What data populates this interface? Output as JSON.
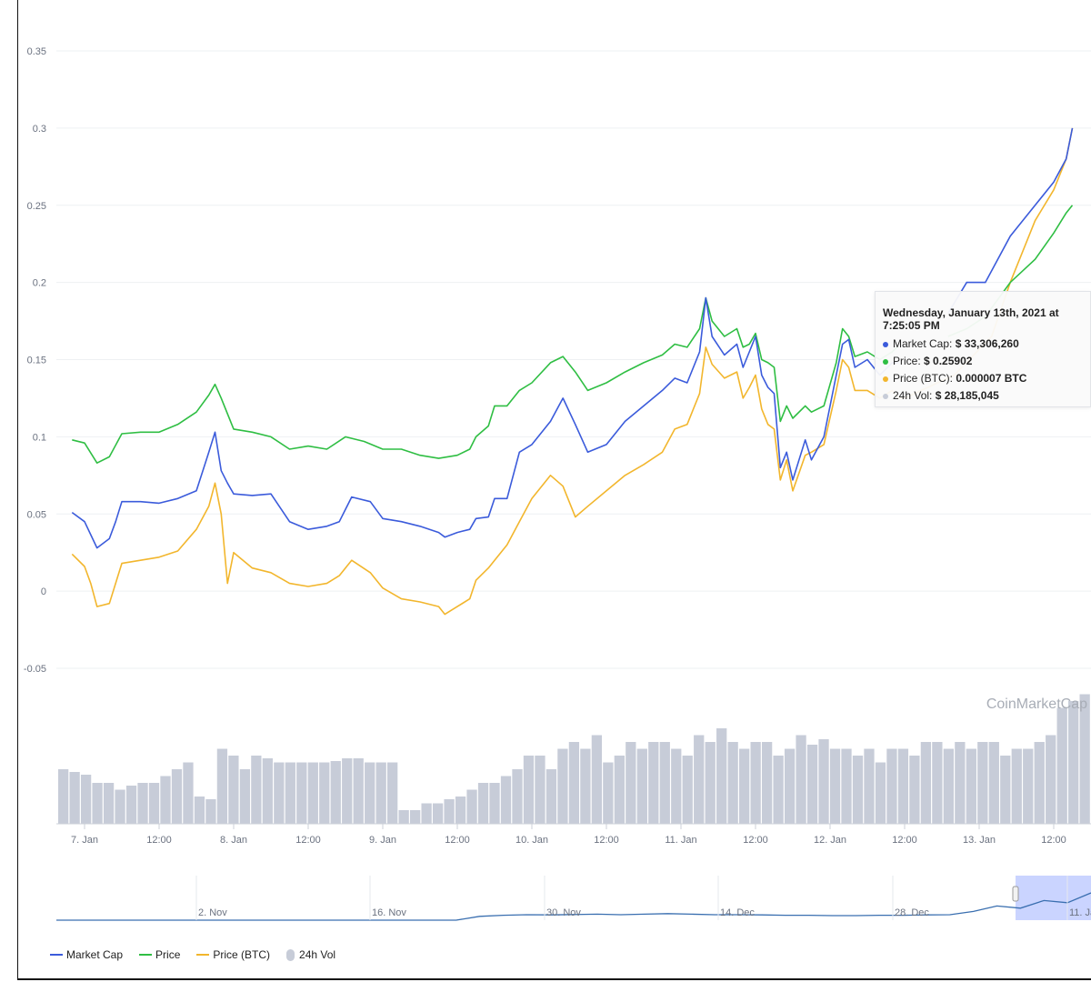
{
  "chart_data": {
    "type": "line",
    "yaxis": {
      "range": [
        -0.05,
        0.35
      ],
      "ticks": [
        "0.35",
        "0.3",
        "0.25",
        "0.2",
        "0.15",
        "0.1",
        "0.05",
        "0",
        "-0.05"
      ]
    },
    "x_tick_labels": [
      "7. Jan",
      "12:00",
      "8. Jan",
      "12:00",
      "9. Jan",
      "12:00",
      "10. Jan",
      "12:00",
      "11. Jan",
      "12:00",
      "12. Jan",
      "12:00",
      "13. Jan",
      "12:00"
    ],
    "x_hours": [
      0,
      12,
      24,
      36,
      48,
      60,
      72,
      84,
      96,
      108,
      120,
      132,
      144,
      156
    ],
    "series": [
      {
        "name": "Market Cap",
        "color": "#3b5bdb",
        "points": [
          [
            -2,
            0.051
          ],
          [
            0,
            0.045
          ],
          [
            2,
            0.028
          ],
          [
            3,
            0.031
          ],
          [
            4,
            0.034
          ],
          [
            5,
            0.045
          ],
          [
            6,
            0.058
          ],
          [
            9,
            0.058
          ],
          [
            12,
            0.057
          ],
          [
            15,
            0.06
          ],
          [
            18,
            0.065
          ],
          [
            20,
            0.09
          ],
          [
            21,
            0.103
          ],
          [
            22,
            0.078
          ],
          [
            23,
            0.07
          ],
          [
            24,
            0.063
          ],
          [
            27,
            0.062
          ],
          [
            30,
            0.063
          ],
          [
            33,
            0.045
          ],
          [
            36,
            0.04
          ],
          [
            39,
            0.042
          ],
          [
            41,
            0.045
          ],
          [
            43,
            0.061
          ],
          [
            46,
            0.058
          ],
          [
            48,
            0.047
          ],
          [
            51,
            0.045
          ],
          [
            54,
            0.042
          ],
          [
            57,
            0.038
          ],
          [
            58,
            0.035
          ],
          [
            60,
            0.038
          ],
          [
            62,
            0.04
          ],
          [
            63,
            0.047
          ],
          [
            65,
            0.048
          ],
          [
            66,
            0.06
          ],
          [
            68,
            0.06
          ],
          [
            70,
            0.09
          ],
          [
            72,
            0.095
          ],
          [
            75,
            0.11
          ],
          [
            77,
            0.125
          ],
          [
            79,
            0.108
          ],
          [
            81,
            0.09
          ],
          [
            84,
            0.095
          ],
          [
            87,
            0.11
          ],
          [
            90,
            0.12
          ],
          [
            93,
            0.13
          ],
          [
            95,
            0.138
          ],
          [
            97,
            0.135
          ],
          [
            99,
            0.155
          ],
          [
            100,
            0.19
          ],
          [
            101,
            0.165
          ],
          [
            103,
            0.153
          ],
          [
            105,
            0.16
          ],
          [
            106,
            0.145
          ],
          [
            107,
            0.155
          ],
          [
            108,
            0.165
          ],
          [
            109,
            0.14
          ],
          [
            110,
            0.132
          ],
          [
            111,
            0.128
          ],
          [
            112,
            0.08
          ],
          [
            113,
            0.09
          ],
          [
            114,
            0.072
          ],
          [
            116,
            0.098
          ],
          [
            117,
            0.085
          ],
          [
            119,
            0.1
          ],
          [
            121,
            0.14
          ],
          [
            122,
            0.16
          ],
          [
            123,
            0.163
          ],
          [
            124,
            0.145
          ],
          [
            126,
            0.15
          ],
          [
            128,
            0.14
          ],
          [
            130,
            0.148
          ],
          [
            131,
            0.148
          ]
        ]
      },
      {
        "name": "Price",
        "color": "#2fbe43",
        "points": [
          [
            -2,
            0.098
          ],
          [
            0,
            0.096
          ],
          [
            2,
            0.083
          ],
          [
            4,
            0.087
          ],
          [
            6,
            0.102
          ],
          [
            9,
            0.103
          ],
          [
            12,
            0.103
          ],
          [
            15,
            0.108
          ],
          [
            18,
            0.116
          ],
          [
            20,
            0.127
          ],
          [
            21,
            0.134
          ],
          [
            22,
            0.125
          ],
          [
            24,
            0.105
          ],
          [
            27,
            0.103
          ],
          [
            30,
            0.1
          ],
          [
            33,
            0.092
          ],
          [
            36,
            0.094
          ],
          [
            39,
            0.092
          ],
          [
            42,
            0.1
          ],
          [
            45,
            0.097
          ],
          [
            48,
            0.092
          ],
          [
            51,
            0.092
          ],
          [
            54,
            0.088
          ],
          [
            57,
            0.086
          ],
          [
            60,
            0.088
          ],
          [
            62,
            0.092
          ],
          [
            63,
            0.1
          ],
          [
            65,
            0.107
          ],
          [
            66,
            0.12
          ],
          [
            68,
            0.12
          ],
          [
            70,
            0.13
          ],
          [
            72,
            0.135
          ],
          [
            75,
            0.148
          ],
          [
            77,
            0.152
          ],
          [
            79,
            0.142
          ],
          [
            81,
            0.13
          ],
          [
            84,
            0.135
          ],
          [
            87,
            0.142
          ],
          [
            90,
            0.148
          ],
          [
            93,
            0.153
          ],
          [
            95,
            0.16
          ],
          [
            97,
            0.158
          ],
          [
            99,
            0.17
          ],
          [
            100,
            0.19
          ],
          [
            101,
            0.175
          ],
          [
            103,
            0.165
          ],
          [
            105,
            0.17
          ],
          [
            106,
            0.158
          ],
          [
            107,
            0.16
          ],
          [
            108,
            0.167
          ],
          [
            109,
            0.15
          ],
          [
            110,
            0.148
          ],
          [
            111,
            0.145
          ],
          [
            112,
            0.11
          ],
          [
            113,
            0.12
          ],
          [
            114,
            0.112
          ],
          [
            116,
            0.12
          ],
          [
            117,
            0.116
          ],
          [
            119,
            0.12
          ],
          [
            121,
            0.148
          ],
          [
            122,
            0.17
          ],
          [
            123,
            0.165
          ],
          [
            124,
            0.152
          ],
          [
            126,
            0.155
          ],
          [
            128,
            0.15
          ],
          [
            130,
            0.155
          ],
          [
            131,
            0.159
          ]
        ]
      },
      {
        "name": "Price (BTC)",
        "color": "#f2b62d",
        "points": [
          [
            -2,
            0.024
          ],
          [
            0,
            0.016
          ],
          [
            1,
            0.005
          ],
          [
            2,
            -0.01
          ],
          [
            4,
            -0.008
          ],
          [
            6,
            0.018
          ],
          [
            9,
            0.02
          ],
          [
            12,
            0.022
          ],
          [
            15,
            0.026
          ],
          [
            18,
            0.04
          ],
          [
            20,
            0.055
          ],
          [
            21,
            0.07
          ],
          [
            22,
            0.05
          ],
          [
            23,
            0.005
          ],
          [
            24,
            0.025
          ],
          [
            27,
            0.015
          ],
          [
            30,
            0.012
          ],
          [
            33,
            0.005
          ],
          [
            36,
            0.003
          ],
          [
            39,
            0.005
          ],
          [
            41,
            0.01
          ],
          [
            43,
            0.02
          ],
          [
            46,
            0.012
          ],
          [
            48,
            0.002
          ],
          [
            51,
            -0.005
          ],
          [
            54,
            -0.007
          ],
          [
            57,
            -0.01
          ],
          [
            58,
            -0.015
          ],
          [
            60,
            -0.01
          ],
          [
            62,
            -0.005
          ],
          [
            63,
            0.007
          ],
          [
            65,
            0.015
          ],
          [
            66,
            0.02
          ],
          [
            68,
            0.03
          ],
          [
            70,
            0.045
          ],
          [
            72,
            0.06
          ],
          [
            75,
            0.075
          ],
          [
            77,
            0.068
          ],
          [
            79,
            0.048
          ],
          [
            81,
            0.055
          ],
          [
            84,
            0.065
          ],
          [
            87,
            0.075
          ],
          [
            90,
            0.082
          ],
          [
            93,
            0.09
          ],
          [
            95,
            0.105
          ],
          [
            97,
            0.108
          ],
          [
            99,
            0.128
          ],
          [
            100,
            0.158
          ],
          [
            101,
            0.147
          ],
          [
            103,
            0.138
          ],
          [
            105,
            0.142
          ],
          [
            106,
            0.125
          ],
          [
            107,
            0.132
          ],
          [
            108,
            0.14
          ],
          [
            109,
            0.118
          ],
          [
            110,
            0.108
          ],
          [
            111,
            0.105
          ],
          [
            112,
            0.072
          ],
          [
            113,
            0.085
          ],
          [
            114,
            0.065
          ],
          [
            116,
            0.088
          ],
          [
            117,
            0.09
          ],
          [
            119,
            0.095
          ],
          [
            121,
            0.13
          ],
          [
            122,
            0.15
          ],
          [
            123,
            0.145
          ],
          [
            124,
            0.13
          ],
          [
            126,
            0.13
          ],
          [
            128,
            0.125
          ],
          [
            130,
            0.13
          ],
          [
            131,
            0.125
          ],
          [
            132,
            0.125
          ],
          [
            140,
            0.14
          ],
          [
            146,
            0.165
          ],
          [
            149,
            0.2
          ],
          [
            153,
            0.24
          ],
          [
            156,
            0.26
          ],
          [
            158,
            0.28
          ],
          [
            159,
            0.3
          ]
        ]
      }
    ],
    "zoom_hidden_segments": {
      "Market Cap": [
        [
          139,
          0.18
        ],
        [
          142,
          0.2
        ],
        [
          145,
          0.2
        ],
        [
          149,
          0.23
        ],
        [
          153,
          0.25
        ],
        [
          156,
          0.265
        ],
        [
          158,
          0.28
        ],
        [
          159,
          0.3
        ]
      ],
      "Price": [
        [
          139,
          0.165
        ],
        [
          142,
          0.17
        ],
        [
          145,
          0.178
        ],
        [
          149,
          0.2
        ],
        [
          153,
          0.215
        ],
        [
          156,
          0.232
        ],
        [
          158,
          0.245
        ],
        [
          159,
          0.25
        ]
      ]
    },
    "volume": {
      "name": "24h Vol",
      "color": "#c7ccd8",
      "levels": [
        0.4,
        0.38,
        0.36,
        0.3,
        0.3,
        0.25,
        0.28,
        0.3,
        0.3,
        0.35,
        0.4,
        0.45,
        0.2,
        0.18,
        0.55,
        0.5,
        0.4,
        0.5,
        0.48,
        0.45,
        0.45,
        0.45,
        0.45,
        0.45,
        0.46,
        0.48,
        0.48,
        0.45,
        0.45,
        0.45,
        0.1,
        0.1,
        0.15,
        0.15,
        0.18,
        0.2,
        0.25,
        0.3,
        0.3,
        0.35,
        0.4,
        0.5,
        0.5,
        0.4,
        0.55,
        0.6,
        0.55,
        0.65,
        0.45,
        0.5,
        0.6,
        0.55,
        0.6,
        0.6,
        0.55,
        0.5,
        0.65,
        0.6,
        0.7,
        0.6,
        0.55,
        0.6,
        0.6,
        0.5,
        0.55,
        0.65,
        0.58,
        0.62,
        0.55,
        0.55,
        0.5,
        0.55,
        0.45,
        0.55,
        0.55,
        0.5,
        0.6,
        0.6,
        0.55,
        0.6,
        0.55,
        0.6,
        0.6,
        0.5,
        0.55,
        0.55,
        0.6,
        0.65,
        0.85,
        0.9,
        0.95
      ]
    },
    "navigator": {
      "labels": [
        "2. Nov",
        "16. Nov",
        "30. Nov",
        "14. Dec",
        "28. Dec",
        "11. Ja"
      ],
      "line_levels": [
        0,
        0,
        0,
        0,
        0,
        0,
        0,
        0,
        0,
        0,
        0,
        0,
        0,
        0,
        0,
        0,
        0,
        0,
        0.35,
        0.45,
        0.5,
        0.48,
        0.52,
        0.55,
        0.5,
        0.55,
        0.6,
        0.55,
        0.5,
        0.5,
        0.48,
        0.45,
        0.45,
        0.42,
        0.42,
        0.45,
        0.45,
        0.48,
        0.5,
        0.8,
        1.3,
        1.1,
        1.8,
        1.6,
        2.5
      ]
    },
    "watermark": "CoinMarketCap"
  },
  "tooltip": {
    "title": "Wednesday, January 13th, 2021 at 7:25:05 PM",
    "rows": [
      {
        "label": "Market Cap:",
        "value": "$ 33,306,260",
        "color": "#3b5bdb"
      },
      {
        "label": "Price:",
        "value": "$ 0.25902",
        "color": "#2fbe43"
      },
      {
        "label": "Price (BTC):",
        "value": "0.000007 BTC",
        "color": "#f2b62d"
      },
      {
        "label": "24h Vol:",
        "value": "$ 28,185,045",
        "color": "#c7ccd8"
      }
    ]
  },
  "legend": [
    {
      "label": "Market Cap",
      "color": "#3b5bdb",
      "kind": "line"
    },
    {
      "label": "Price",
      "color": "#2fbe43",
      "kind": "line"
    },
    {
      "label": "Price (BTC)",
      "color": "#f2b62d",
      "kind": "line"
    },
    {
      "label": "24h Vol",
      "color": "#c7ccd8",
      "kind": "bubble"
    }
  ]
}
